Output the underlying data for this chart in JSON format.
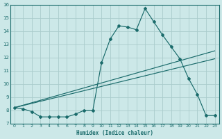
{
  "xlabel": "Humidex (Indice chaleur)",
  "bg_color": "#cce8e8",
  "grid_color": "#aacccc",
  "line_color": "#1a6b6b",
  "xlim": [
    -0.5,
    23.5
  ],
  "ylim": [
    7,
    16
  ],
  "xticks": [
    0,
    1,
    2,
    3,
    4,
    5,
    6,
    7,
    8,
    9,
    10,
    11,
    12,
    13,
    14,
    15,
    16,
    17,
    18,
    19,
    20,
    21,
    22,
    23
  ],
  "yticks": [
    7,
    8,
    9,
    10,
    11,
    12,
    13,
    14,
    15,
    16
  ],
  "series1_x": [
    0,
    1,
    2,
    3,
    4,
    5,
    6,
    7,
    8,
    9,
    10,
    11,
    12,
    13,
    14,
    15,
    16,
    17,
    18,
    19,
    20,
    21,
    22,
    23
  ],
  "series1_y": [
    8.2,
    8.1,
    7.9,
    7.5,
    7.5,
    7.5,
    7.5,
    7.7,
    8.0,
    8.0,
    11.6,
    13.4,
    14.4,
    14.3,
    14.1,
    15.7,
    14.7,
    13.7,
    12.8,
    11.9,
    10.4,
    9.2,
    7.6,
    7.6
  ],
  "series2_x": [
    0,
    23
  ],
  "series2_y": [
    8.2,
    12.5
  ],
  "series3_x": [
    0,
    23
  ],
  "series3_y": [
    8.2,
    11.9
  ]
}
